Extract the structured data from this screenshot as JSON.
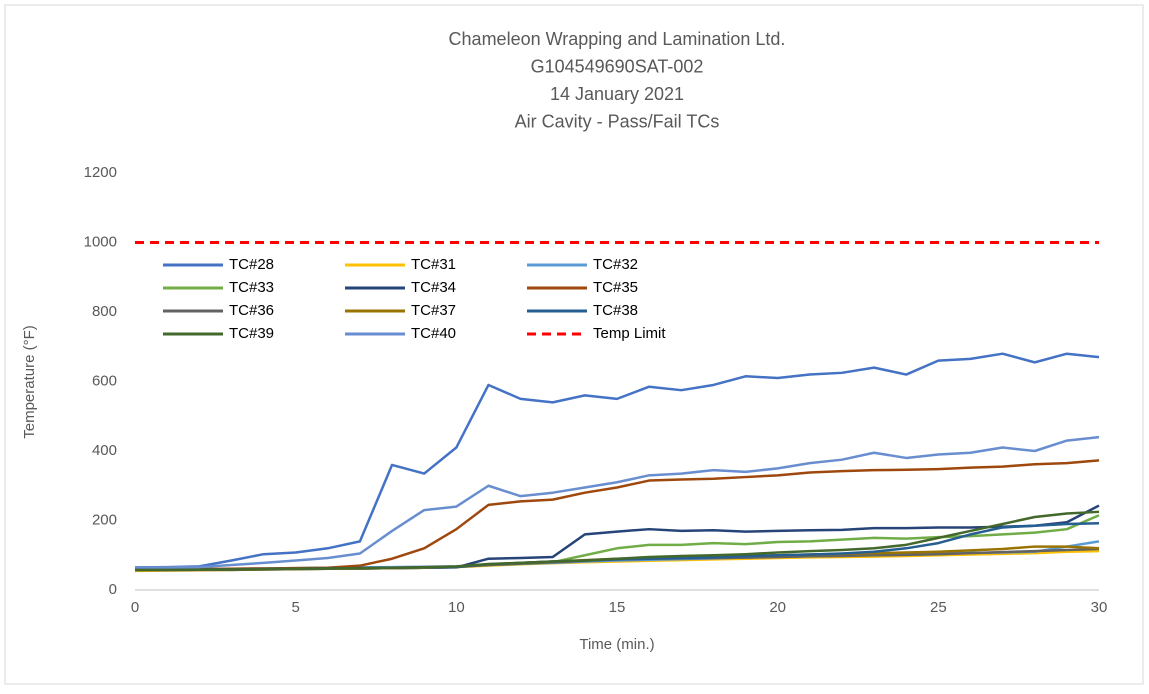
{
  "chart_data": {
    "type": "line",
    "title": [
      "Chameleon Wrapping and Lamination Ltd.",
      "G104549690SAT-002",
      "14 January 2021",
      "Air Cavity - Pass/Fail TCs"
    ],
    "x_label": "Time (min.)",
    "y_label": "Temperature (°F)",
    "x": [
      0,
      1,
      2,
      3,
      4,
      5,
      6,
      7,
      8,
      9,
      10,
      11,
      12,
      13,
      14,
      15,
      16,
      17,
      18,
      19,
      20,
      21,
      22,
      23,
      24,
      25,
      26,
      27,
      28,
      29,
      30
    ],
    "xlim": [
      0,
      30
    ],
    "xticks": [
      0,
      5,
      10,
      15,
      20,
      25,
      30
    ],
    "ylim": [
      0,
      1200
    ],
    "yticks": [
      0,
      200,
      400,
      600,
      800,
      1000,
      1200
    ],
    "grid": false,
    "legend": "upper left",
    "series": [
      {
        "name": "TC#28",
        "color": "#4472c4",
        "values": [
          65,
          66,
          68,
          85,
          103,
          108,
          120,
          140,
          360,
          335,
          410,
          590,
          550,
          540,
          560,
          550,
          585,
          575,
          590,
          615,
          610,
          620,
          625,
          640,
          620,
          660,
          665,
          680,
          655,
          680,
          670
        ]
      },
      {
        "name": "TC#31",
        "color": "#ffc000",
        "values": [
          55,
          56,
          57,
          58,
          60,
          61,
          62,
          63,
          64,
          65,
          66,
          70,
          74,
          77,
          80,
          82,
          84,
          86,
          88,
          90,
          92,
          94,
          95,
          96,
          98,
          100,
          102,
          104,
          106,
          110,
          112
        ]
      },
      {
        "name": "TC#32",
        "color": "#5b9bd5",
        "values": [
          58,
          59,
          60,
          61,
          62,
          63,
          64,
          65,
          66,
          67,
          68,
          72,
          75,
          78,
          82,
          85,
          87,
          89,
          91,
          93,
          95,
          97,
          99,
          101,
          103,
          105,
          107,
          108,
          110,
          125,
          140
        ]
      },
      {
        "name": "TC#33",
        "color": "#70ad47",
        "values": [
          58,
          58,
          59,
          59,
          60,
          60,
          61,
          62,
          63,
          64,
          66,
          72,
          75,
          80,
          100,
          120,
          130,
          130,
          135,
          132,
          138,
          140,
          145,
          150,
          148,
          152,
          155,
          160,
          165,
          175,
          215
        ]
      },
      {
        "name": "TC#34",
        "color": "#264478",
        "values": [
          60,
          60,
          60,
          60,
          61,
          61,
          62,
          62,
          63,
          64,
          65,
          90,
          92,
          95,
          160,
          168,
          175,
          170,
          172,
          168,
          170,
          172,
          173,
          178,
          178,
          180,
          180,
          182,
          185,
          195,
          243
        ]
      },
      {
        "name": "TC#35",
        "color": "#9e480e",
        "values": [
          60,
          60,
          60,
          61,
          62,
          63,
          64,
          70,
          90,
          120,
          175,
          245,
          255,
          260,
          280,
          295,
          315,
          318,
          320,
          325,
          330,
          338,
          342,
          345,
          346,
          348,
          352,
          355,
          362,
          365,
          373
        ]
      },
      {
        "name": "TC#36",
        "color": "#636363",
        "values": [
          57,
          57,
          58,
          58,
          59,
          60,
          61,
          62,
          63,
          64,
          66,
          72,
          76,
          80,
          84,
          88,
          90,
          91,
          92,
          93,
          95,
          97,
          98,
          100,
          101,
          103,
          106,
          109,
          112,
          115,
          118
        ]
      },
      {
        "name": "TC#37",
        "color": "#997300",
        "values": [
          57,
          57,
          58,
          58,
          59,
          60,
          61,
          62,
          63,
          64,
          66,
          73,
          78,
          82,
          86,
          90,
          92,
          94,
          96,
          98,
          100,
          102,
          104,
          106,
          108,
          110,
          114,
          118,
          125,
          125,
          120
        ]
      },
      {
        "name": "TC#38",
        "color": "#255e91",
        "values": [
          58,
          58,
          59,
          59,
          60,
          61,
          62,
          63,
          64,
          65,
          66,
          74,
          78,
          82,
          85,
          88,
          90,
          92,
          94,
          97,
          100,
          102,
          105,
          110,
          120,
          135,
          160,
          180,
          185,
          190,
          192
        ]
      },
      {
        "name": "TC#39",
        "color": "#43682b",
        "values": [
          58,
          58,
          59,
          59,
          60,
          61,
          62,
          63,
          64,
          66,
          68,
          75,
          78,
          82,
          85,
          90,
          95,
          98,
          100,
          103,
          108,
          112,
          115,
          120,
          130,
          150,
          170,
          190,
          210,
          220,
          225
        ]
      },
      {
        "name": "TC#40",
        "color": "#698ed0",
        "values": [
          65,
          65,
          66,
          72,
          78,
          85,
          92,
          105,
          170,
          230,
          240,
          300,
          270,
          280,
          295,
          310,
          330,
          335,
          345,
          340,
          350,
          365,
          375,
          395,
          380,
          390,
          395,
          410,
          400,
          430,
          440
        ]
      },
      {
        "name": "Temp Limit",
        "color": "#ff0000",
        "dashed": true,
        "values": [
          1000,
          1000,
          1000,
          1000,
          1000,
          1000,
          1000,
          1000,
          1000,
          1000,
          1000,
          1000,
          1000,
          1000,
          1000,
          1000,
          1000,
          1000,
          1000,
          1000,
          1000,
          1000,
          1000,
          1000,
          1000,
          1000,
          1000,
          1000,
          1000,
          1000,
          1000
        ]
      }
    ]
  }
}
